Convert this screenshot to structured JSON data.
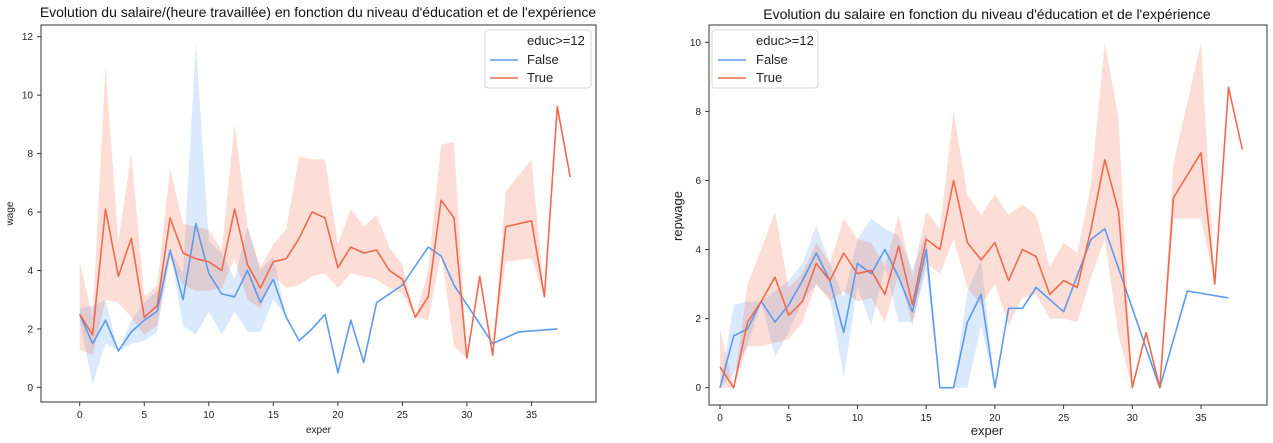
{
  "chart_data": [
    {
      "type": "line",
      "title": "Evolution du salaire/(heure travaillée) en fonction du niveau d'éducation et de l'expérience",
      "xlabel": "exper",
      "ylabel": "wage",
      "xlim": [
        -3,
        40
      ],
      "ylim": [
        -0.5,
        12.4
      ],
      "xticks": [
        0,
        5,
        10,
        15,
        20,
        25,
        30,
        35
      ],
      "yticks": [
        0,
        2,
        4,
        6,
        8,
        10,
        12
      ],
      "grid": false,
      "legend": {
        "title": "educ>=12",
        "placement": "top-right",
        "entries": [
          "False",
          "True"
        ]
      },
      "series": [
        {
          "name": "False",
          "color": "#5b9bf0",
          "x": [
            0,
            1,
            2,
            3,
            4,
            5,
            6,
            7,
            8,
            9,
            10,
            11,
            12,
            13,
            14,
            15,
            16,
            17,
            18,
            19,
            20,
            21,
            22,
            23,
            25,
            27,
            28,
            29,
            32,
            34,
            37
          ],
          "y": [
            2.5,
            1.5,
            2.3,
            1.25,
            1.9,
            2.3,
            2.6,
            4.7,
            3.0,
            5.6,
            3.9,
            3.2,
            3.1,
            4.0,
            2.9,
            3.7,
            2.4,
            1.6,
            2.0,
            2.5,
            0.5,
            2.3,
            0.85,
            2.9,
            3.5,
            4.8,
            4.5,
            3.5,
            1.5,
            1.9,
            2.0
          ],
          "ci_lower": [
            2.3,
            0.1,
            1.5,
            1.25,
            1.5,
            1.6,
            1.9,
            4.7,
            2.1,
            1.8,
            2.6,
            1.8,
            2.6,
            1.9,
            1.9,
            3.0,
            2.4,
            1.6,
            2.0,
            2.5,
            0.5,
            2.3,
            0.85,
            2.9,
            3.5,
            4.8,
            4.5,
            3.5,
            1.5,
            1.9,
            2.0
          ],
          "ci_upper": [
            2.7,
            2.8,
            3.0,
            1.25,
            2.3,
            2.9,
            3.3,
            4.7,
            3.9,
            11.8,
            5.0,
            4.6,
            3.7,
            5.5,
            4.0,
            4.5,
            2.4,
            1.6,
            2.0,
            2.5,
            0.5,
            2.3,
            0.85,
            2.9,
            3.5,
            4.8,
            4.5,
            3.5,
            1.5,
            1.9,
            2.0
          ]
        },
        {
          "name": "True",
          "color": "#f2694b",
          "x": [
            0,
            1,
            2,
            3,
            4,
            5,
            6,
            7,
            8,
            9,
            10,
            11,
            12,
            13,
            14,
            15,
            16,
            17,
            18,
            19,
            20,
            21,
            22,
            23,
            24,
            25,
            26,
            27,
            28,
            29,
            30,
            31,
            32,
            33,
            35,
            36,
            37,
            38
          ],
          "y": [
            2.5,
            1.8,
            6.1,
            3.8,
            5.1,
            2.4,
            2.8,
            5.8,
            4.6,
            4.4,
            4.3,
            4.0,
            6.1,
            4.2,
            3.4,
            4.3,
            4.4,
            5.1,
            6.0,
            5.8,
            4.1,
            4.8,
            4.6,
            4.7,
            4.0,
            3.7,
            2.4,
            3.1,
            6.4,
            5.8,
            1.0,
            3.8,
            1.1,
            5.5,
            5.7,
            3.1,
            9.6,
            7.2
          ],
          "ci_lower": [
            1.3,
            1.1,
            3.0,
            2.9,
            2.4,
            1.8,
            2.1,
            4.4,
            3.5,
            3.3,
            3.3,
            3.4,
            4.4,
            3.0,
            2.7,
            3.8,
            3.4,
            3.5,
            3.8,
            3.9,
            3.4,
            3.9,
            3.8,
            3.7,
            3.4,
            3.2,
            2.4,
            2.3,
            4.6,
            1.4,
            1.0,
            3.8,
            1.1,
            4.3,
            4.4,
            3.1,
            9.6,
            7.2
          ],
          "ci_upper": [
            4.3,
            2.4,
            11.0,
            5.0,
            8.0,
            3.1,
            3.5,
            7.5,
            5.6,
            5.5,
            5.4,
            4.7,
            9.0,
            5.5,
            4.1,
            4.9,
            5.4,
            7.9,
            7.8,
            7.8,
            4.9,
            6.1,
            5.5,
            5.9,
            4.8,
            4.2,
            2.4,
            4.0,
            8.3,
            8.4,
            1.0,
            3.8,
            1.1,
            6.7,
            7.8,
            3.1,
            9.6,
            7.2
          ]
        }
      ]
    },
    {
      "type": "line",
      "title": "Evolution du salaire en fonction du niveau d'éducation et de l'expérience",
      "xlabel": "exper",
      "ylabel": "repwage",
      "xlim": [
        -0.8,
        39.8
      ],
      "ylim": [
        -0.5,
        10.5
      ],
      "xticks": [
        0,
        5,
        10,
        15,
        20,
        25,
        30,
        35
      ],
      "yticks": [
        0,
        2,
        4,
        6,
        8,
        10
      ],
      "grid": false,
      "legend": {
        "title": "educ>=12",
        "placement": "top-left",
        "entries": [
          "False",
          "True"
        ]
      },
      "series": [
        {
          "name": "False",
          "color": "#5b9bf0",
          "x": [
            0,
            1,
            2,
            3,
            4,
            5,
            6,
            7,
            8,
            9,
            10,
            11,
            12,
            13,
            14,
            15,
            16,
            17,
            18,
            19,
            20,
            21,
            22,
            23,
            25,
            27,
            28,
            32,
            34,
            37
          ],
          "y": [
            0.0,
            1.5,
            1.7,
            2.5,
            1.9,
            2.4,
            3.1,
            3.9,
            3.1,
            1.6,
            3.6,
            3.3,
            4.0,
            3.2,
            2.2,
            4.0,
            0.0,
            0.0,
            1.9,
            2.7,
            0.0,
            2.3,
            2.3,
            2.9,
            2.2,
            4.3,
            4.6,
            0.0,
            2.8,
            2.6
          ],
          "ci_lower": [
            0.0,
            0.4,
            1.2,
            2.5,
            0.9,
            1.6,
            2.5,
            3.0,
            2.6,
            0.3,
            2.9,
            1.8,
            3.5,
            1.9,
            1.9,
            3.4,
            0.0,
            0.0,
            0.0,
            1.8,
            0.0,
            2.3,
            2.3,
            2.9,
            2.2,
            4.3,
            4.6,
            0.0,
            2.8,
            2.6
          ],
          "ci_upper": [
            0.0,
            2.4,
            2.5,
            2.5,
            2.8,
            3.1,
            3.6,
            4.7,
            3.6,
            2.6,
            4.3,
            4.9,
            4.6,
            4.4,
            3.4,
            4.5,
            0.0,
            0.0,
            2.8,
            3.7,
            0.0,
            2.3,
            2.3,
            2.9,
            2.2,
            4.3,
            4.6,
            0.0,
            2.8,
            2.6
          ]
        },
        {
          "name": "True",
          "color": "#f2694b",
          "x": [
            0,
            1,
            2,
            3,
            4,
            5,
            6,
            7,
            8,
            9,
            10,
            11,
            12,
            13,
            14,
            15,
            16,
            17,
            18,
            19,
            20,
            21,
            22,
            23,
            24,
            25,
            26,
            27,
            28,
            29,
            30,
            31,
            32,
            33,
            35,
            36,
            37,
            38
          ],
          "y": [
            0.6,
            0.0,
            1.9,
            2.5,
            3.2,
            2.1,
            2.5,
            3.6,
            3.1,
            3.9,
            3.3,
            3.4,
            2.7,
            4.1,
            2.4,
            4.3,
            4.0,
            6.0,
            4.2,
            3.7,
            4.2,
            3.1,
            4.0,
            3.8,
            2.7,
            3.1,
            2.9,
            4.6,
            6.6,
            5.1,
            0.0,
            1.6,
            0.0,
            5.5,
            6.8,
            3.0,
            8.7,
            6.9
          ],
          "ci_lower": [
            0.0,
            0.0,
            1.2,
            1.2,
            1.3,
            1.4,
            1.9,
            3.0,
            2.5,
            2.8,
            2.5,
            2.6,
            1.9,
            3.3,
            1.8,
            3.6,
            3.3,
            4.3,
            2.9,
            2.4,
            3.0,
            1.8,
            2.6,
            2.7,
            2.0,
            2.0,
            1.9,
            3.2,
            4.3,
            1.5,
            0.0,
            1.6,
            0.0,
            4.9,
            4.9,
            3.0,
            8.7,
            6.9
          ],
          "ci_upper": [
            1.7,
            0.0,
            3.0,
            4.0,
            5.1,
            2.9,
            3.3,
            4.2,
            3.6,
            4.9,
            4.3,
            4.2,
            3.5,
            5.0,
            3.2,
            5.1,
            4.6,
            8.0,
            5.6,
            5.0,
            5.6,
            5.0,
            5.3,
            5.0,
            3.5,
            4.2,
            3.9,
            5.9,
            10.0,
            7.8,
            0.0,
            1.6,
            0.0,
            6.5,
            10.0,
            3.0,
            8.7,
            6.9
          ]
        }
      ]
    }
  ]
}
